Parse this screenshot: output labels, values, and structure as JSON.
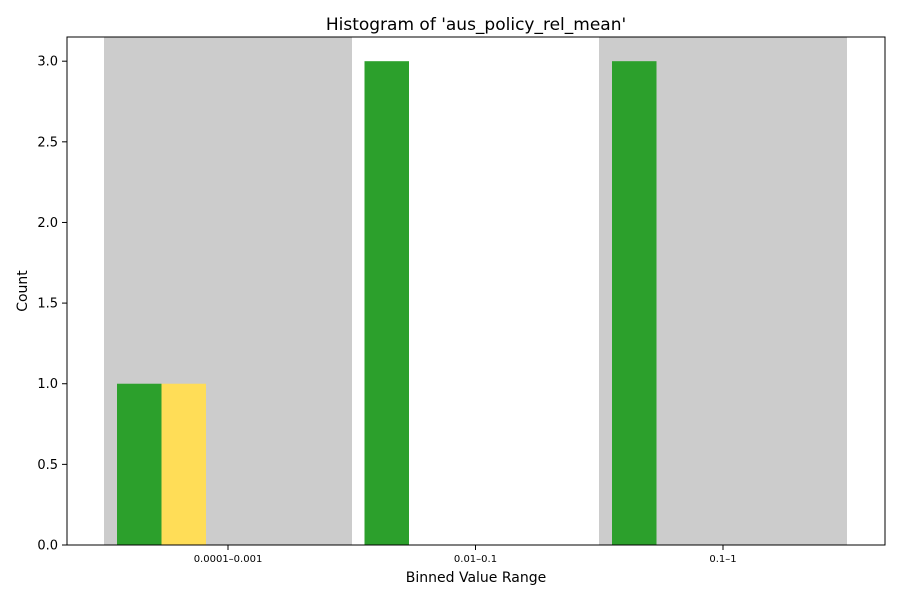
{
  "chart_data": {
    "type": "bar",
    "title": "Histogram of 'aus_policy_rel_mean'",
    "xlabel": "Binned Value Range",
    "ylabel": "Count",
    "ylim": [
      0,
      3.15
    ],
    "yticks": [
      "0.0",
      "0.5",
      "1.0",
      "1.5",
      "2.0",
      "2.5",
      "3.0"
    ],
    "categories": [
      "0.0001–0.001",
      "0.01–0.1",
      "0.1–1"
    ],
    "background_shading": [
      "#cccccc",
      "none",
      "#cccccc"
    ],
    "series": [
      {
        "color": "#2ca02c",
        "values": [
          1,
          3,
          3
        ]
      },
      {
        "color": "#ffdd57",
        "values": [
          1,
          0,
          0
        ]
      }
    ],
    "grid": false,
    "legend": "none"
  }
}
